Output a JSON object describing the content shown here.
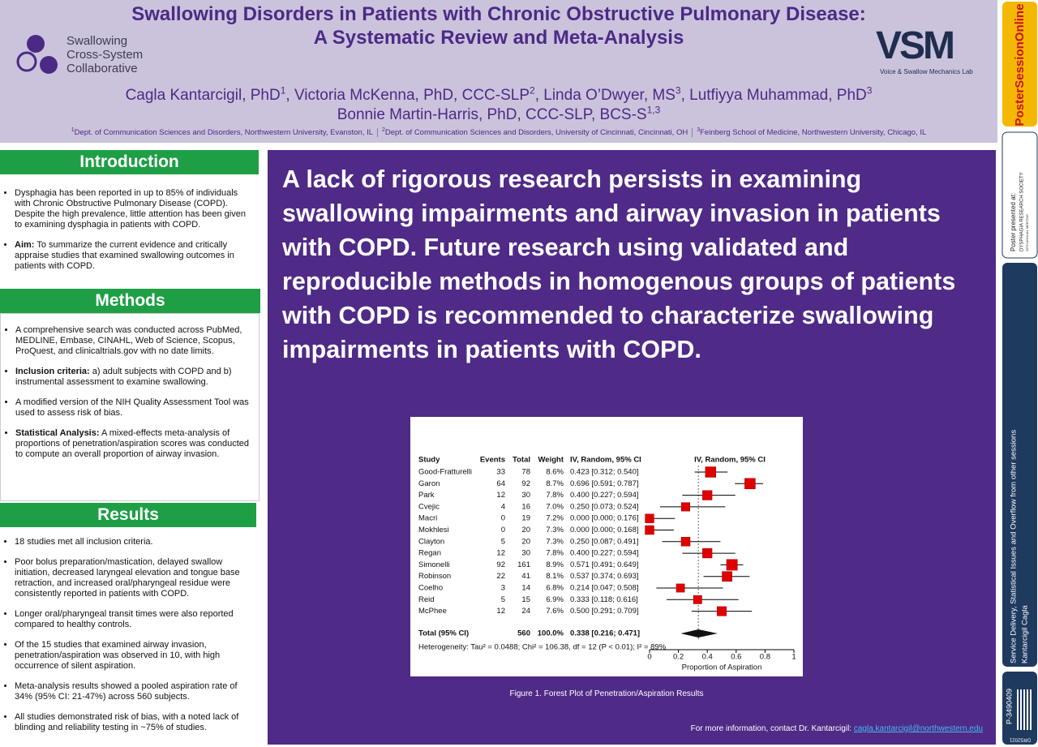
{
  "header": {
    "title_lines": [
      "Swallowing Disorders in Patients with Chronic Obstructive Pulmonary Disease:",
      "A Systematic Review and Meta-Analysis"
    ],
    "left_logo": [
      "Swallowing",
      "Cross-System",
      "Collaborative"
    ],
    "right_logo": {
      "mark": "VSM",
      "caption": "Voice & Swallow Mechanics Lab"
    },
    "authors_lines": [
      [
        {
          "name": "Cagla Kantarcigil, PhD",
          "sup": "1"
        },
        {
          "name": "Victoria McKenna, PhD, CCC-SLP",
          "sup": "2"
        },
        {
          "name": "Linda O’Dwyer, MS",
          "sup": "3"
        },
        {
          "name": "Lutfiyya Muhammad, PhD",
          "sup": "3"
        }
      ],
      [
        {
          "name": "Bonnie Martin-Harris, PhD, CCC-SLP, BCS-S",
          "sup": "1,3"
        }
      ]
    ],
    "affiliations": [
      {
        "sup": "1",
        "text": "Dept. of Communication Sciences and Disorders, Northwestern University, Evanston, IL"
      },
      {
        "sup": "2",
        "text": "Dept. of  Communication Sciences and Disorders, University of Cincinnati, Cincinnati, OH"
      },
      {
        "sup": "3",
        "text": "Feinberg School of Medicine, Northwestern University, Chicago, IL"
      }
    ]
  },
  "sections": [
    {
      "title": "Introduction",
      "bullets": [
        {
          "text": "Dysphagia has been reported in up to 85% of individuals with Chronic Obstructive Pulmonary Disease (COPD). Despite the high prevalence, little attention has been given to examining dysphagia in patients with COPD."
        },
        {
          "bold": "Aim:",
          "text": "To summarize the current evidence and critically appraise studies that examined swallowing outcomes in patients with COPD."
        }
      ]
    },
    {
      "title": "Methods",
      "bullets": [
        {
          "text": "A comprehensive search was conducted across PubMed, MEDLINE, Embase, CINAHL, Web of Science, Scopus, ProQuest, and clinicaltrials.gov with no date limits."
        },
        {
          "bold": "Inclusion criteria:",
          "text": "a) adult subjects with COPD and b) instrumental assessment to examine swallowing."
        },
        {
          "text": "A modified version of the NIH Quality Assessment Tool was used to assess risk of bias."
        },
        {
          "bold": "Statistical Analysis:",
          "text": "A mixed-effects meta-analysis of proportions of penetration/aspiration scores was conducted to compute an overall proportion of airway invasion."
        }
      ]
    },
    {
      "title": "Results",
      "bullets": [
        {
          "text": "18 studies met all inclusion criteria."
        },
        {
          "text": "Poor bolus preparation/mastication, delayed swallow initiation, decreased laryngeal elevation and tongue base retraction, and increased oral/pharyngeal residue were consistently reported in patients with COPD."
        },
        {
          "text": "Longer oral/pharyngeal transit times were also reported compared to healthy controls."
        },
        {
          "text": "Of the 15 studies that examined airway invasion, penetration/aspiration was observed in 10, with high occurrence of silent aspiration."
        },
        {
          "text": "Meta-analysis results showed a pooled aspiration rate of 34% (95% CI: 21-47%) across 560 subjects."
        },
        {
          "text": "All studies demonstrated risk of bias, with a noted lack of blinding and reliability testing in ~75% of studies."
        }
      ]
    }
  ],
  "main_message": "A lack of rigorous research persists in examining swallowing impairments and airway invasion in patients with COPD. Future research using validated and reproducible methods in homogenous groups of patients with COPD is recommended to characterize swallowing impairments in patients with COPD.",
  "figure": {
    "columns": [
      "Study",
      "Events",
      "Total",
      "Weight",
      "IV, Random, 95% CI"
    ],
    "plot_title": "IV, Random, 95% CI",
    "rows": [
      {
        "study": "Good-Fratturelli",
        "events": 33,
        "total": 78,
        "weight": 8.6,
        "weight_label": "8.6%",
        "estimate": 0.423,
        "lower": 0.312,
        "upper": 0.54,
        "ci_label": "0.423 [0.312; 0.540]"
      },
      {
        "study": "Garon",
        "events": 64,
        "total": 92,
        "weight": 8.7,
        "weight_label": "8.7%",
        "estimate": 0.696,
        "lower": 0.591,
        "upper": 0.787,
        "ci_label": "0.696 [0.591; 0.787]"
      },
      {
        "study": "Park",
        "events": 12,
        "total": 30,
        "weight": 7.8,
        "weight_label": "7.8%",
        "estimate": 0.4,
        "lower": 0.227,
        "upper": 0.594,
        "ci_label": "0.400 [0.227; 0.594]"
      },
      {
        "study": "Cvejic",
        "events": 4,
        "total": 16,
        "weight": 7.0,
        "weight_label": "7.0%",
        "estimate": 0.25,
        "lower": 0.073,
        "upper": 0.524,
        "ci_label": "0.250 [0.073; 0.524]"
      },
      {
        "study": "Macri",
        "events": 0,
        "total": 19,
        "weight": 7.2,
        "weight_label": "7.2%",
        "estimate": 0.0,
        "lower": 0.0,
        "upper": 0.176,
        "ci_label": "0.000 [0.000; 0.176]"
      },
      {
        "study": "Mokhlesi",
        "events": 0,
        "total": 20,
        "weight": 7.3,
        "weight_label": "7.3%",
        "estimate": 0.0,
        "lower": 0.0,
        "upper": 0.168,
        "ci_label": "0.000 [0.000; 0.168]"
      },
      {
        "study": "Clayton",
        "events": 5,
        "total": 20,
        "weight": 7.3,
        "weight_label": "7.3%",
        "estimate": 0.25,
        "lower": 0.087,
        "upper": 0.491,
        "ci_label": "0.250 [0.087; 0.491]"
      },
      {
        "study": "Regan",
        "events": 12,
        "total": 30,
        "weight": 7.8,
        "weight_label": "7.8%",
        "estimate": 0.4,
        "lower": 0.227,
        "upper": 0.594,
        "ci_label": "0.400 [0.227; 0.594]"
      },
      {
        "study": "Simonelli",
        "events": 92,
        "total": 161,
        "weight": 8.9,
        "weight_label": "8.9%",
        "estimate": 0.571,
        "lower": 0.491,
        "upper": 0.649,
        "ci_label": "0.571 [0.491; 0.649]"
      },
      {
        "study": "Robinson",
        "events": 22,
        "total": 41,
        "weight": 8.1,
        "weight_label": "8.1%",
        "estimate": 0.537,
        "lower": 0.374,
        "upper": 0.693,
        "ci_label": "0.537 [0.374; 0.693]"
      },
      {
        "study": "Coelho",
        "events": 3,
        "total": 14,
        "weight": 6.8,
        "weight_label": "6.8%",
        "estimate": 0.214,
        "lower": 0.047,
        "upper": 0.508,
        "ci_label": "0.214 [0.047; 0.508]"
      },
      {
        "study": "Reid",
        "events": 5,
        "total": 15,
        "weight": 6.9,
        "weight_label": "6.9%",
        "estimate": 0.333,
        "lower": 0.118,
        "upper": 0.616,
        "ci_label": "0.333 [0.118; 0.616]"
      },
      {
        "study": "McPhee",
        "events": 12,
        "total": 24,
        "weight": 7.6,
        "weight_label": "7.6%",
        "estimate": 0.5,
        "lower": 0.291,
        "upper": 0.709,
        "ci_label": "0.500 [0.291; 0.709]"
      }
    ],
    "total": {
      "study": "Total (95% CI)",
      "total": 560,
      "weight_label": "100.0%",
      "estimate": 0.338,
      "lower": 0.216,
      "upper": 0.471,
      "ci_label": "0.338 [0.216; 0.471]"
    },
    "heterogeneity": "Heterogeneity: Tau² = 0.0488; Chi² = 106.38, df = 12 (P < 0.01); I² = 89%",
    "xlim": [
      0,
      1
    ],
    "xticks": [
      0,
      0.2,
      0.4,
      0.6,
      0.8,
      1
    ],
    "xlabel": "Proportion of Aspiration",
    "caption": "Figure 1. Forest Plot of Penetration/Aspiration Results"
  },
  "contact": {
    "text": "For more information, contact Dr. Kantarcigil:",
    "email": "cagla.kantarcigil@northwestern.edu"
  },
  "sidebar": {
    "brand": "PosterSessionOnline",
    "presented_at": "Poster presented at:",
    "society": "DYSPHAGIA RESEARCH SOCIETY",
    "meeting": "29TH ANNUAL MEETING",
    "session": "Service Delivery, Statistical Issues and Overflow from other sessions",
    "author": "Kantarcigil Cagla",
    "poster_id": "P-3490409",
    "code": "DRS2021"
  }
}
